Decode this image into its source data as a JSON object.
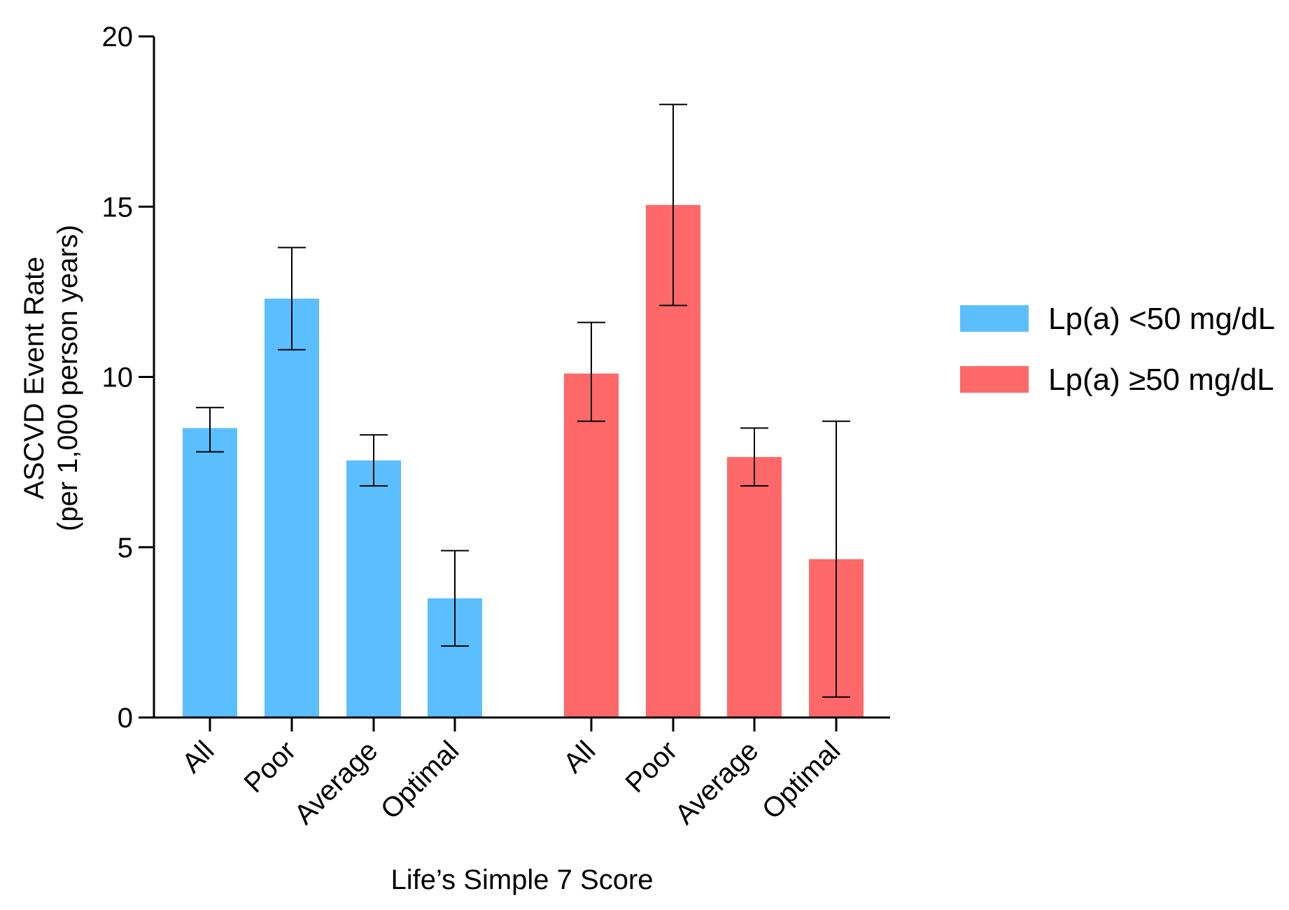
{
  "chart_data": {
    "type": "bar",
    "title": "",
    "xlabel": "Life’s Simple 7 Score",
    "ylabel_lines": [
      "ASCVD Event Rate",
      "(per 1,000 person years)"
    ],
    "ylim": [
      0,
      20
    ],
    "yticks": [
      0,
      5,
      10,
      15,
      20
    ],
    "grid": false,
    "legend_position": "right",
    "colors": {
      "lt50": "#5bbfff",
      "ge50": "#ff6868"
    },
    "series": [
      {
        "name": "Lp(a) <50 mg/dL",
        "color_key": "lt50",
        "categories": [
          "All",
          "Poor",
          "Average",
          "Optimal"
        ],
        "values": [
          8.5,
          12.3,
          7.55,
          3.5
        ],
        "ci_low": [
          7.8,
          10.8,
          6.8,
          2.1
        ],
        "ci_high": [
          9.1,
          13.8,
          8.3,
          4.9
        ]
      },
      {
        "name": "Lp(a) ≥50 mg/dL",
        "color_key": "ge50",
        "categories": [
          "All",
          "Poor",
          "Average",
          "Optimal"
        ],
        "values": [
          10.1,
          15.05,
          7.65,
          4.65
        ],
        "ci_low": [
          8.7,
          12.1,
          6.8,
          0.6
        ],
        "ci_high": [
          11.6,
          18.0,
          8.5,
          8.7
        ]
      }
    ]
  }
}
